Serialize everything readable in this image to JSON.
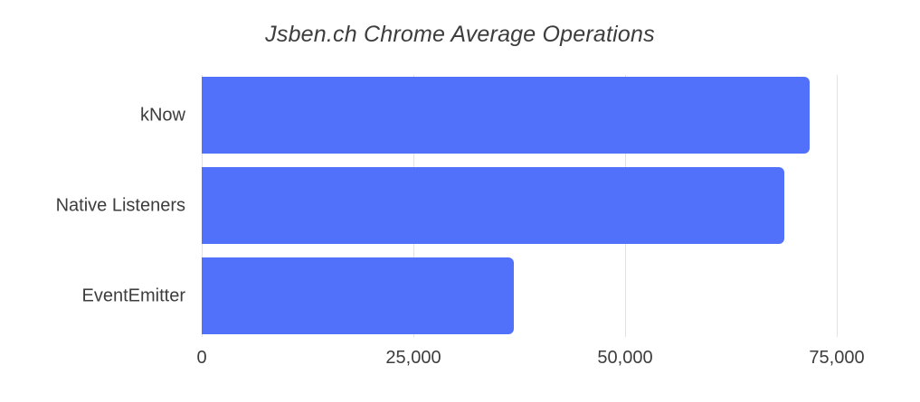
{
  "chart_data": {
    "type": "bar",
    "orientation": "horizontal",
    "title": "Jsben.ch Chrome Average Operations",
    "categories": [
      "kNow",
      "Native Listeners",
      "EventEmitter"
    ],
    "values": [
      71800,
      68800,
      36900
    ],
    "xlabel": "",
    "ylabel": "",
    "xlim": [
      0,
      75000
    ],
    "xticks": [
      0,
      25000,
      50000,
      75000
    ],
    "xtick_labels": [
      "0",
      "25,000",
      "50,000",
      "75,000"
    ],
    "grid": "vertical-only",
    "legend": false,
    "colors": {
      "bar": "#5271fa",
      "gridline": "#e2e2e2",
      "text": "#3d3d3d",
      "background": "#ffffff"
    }
  }
}
